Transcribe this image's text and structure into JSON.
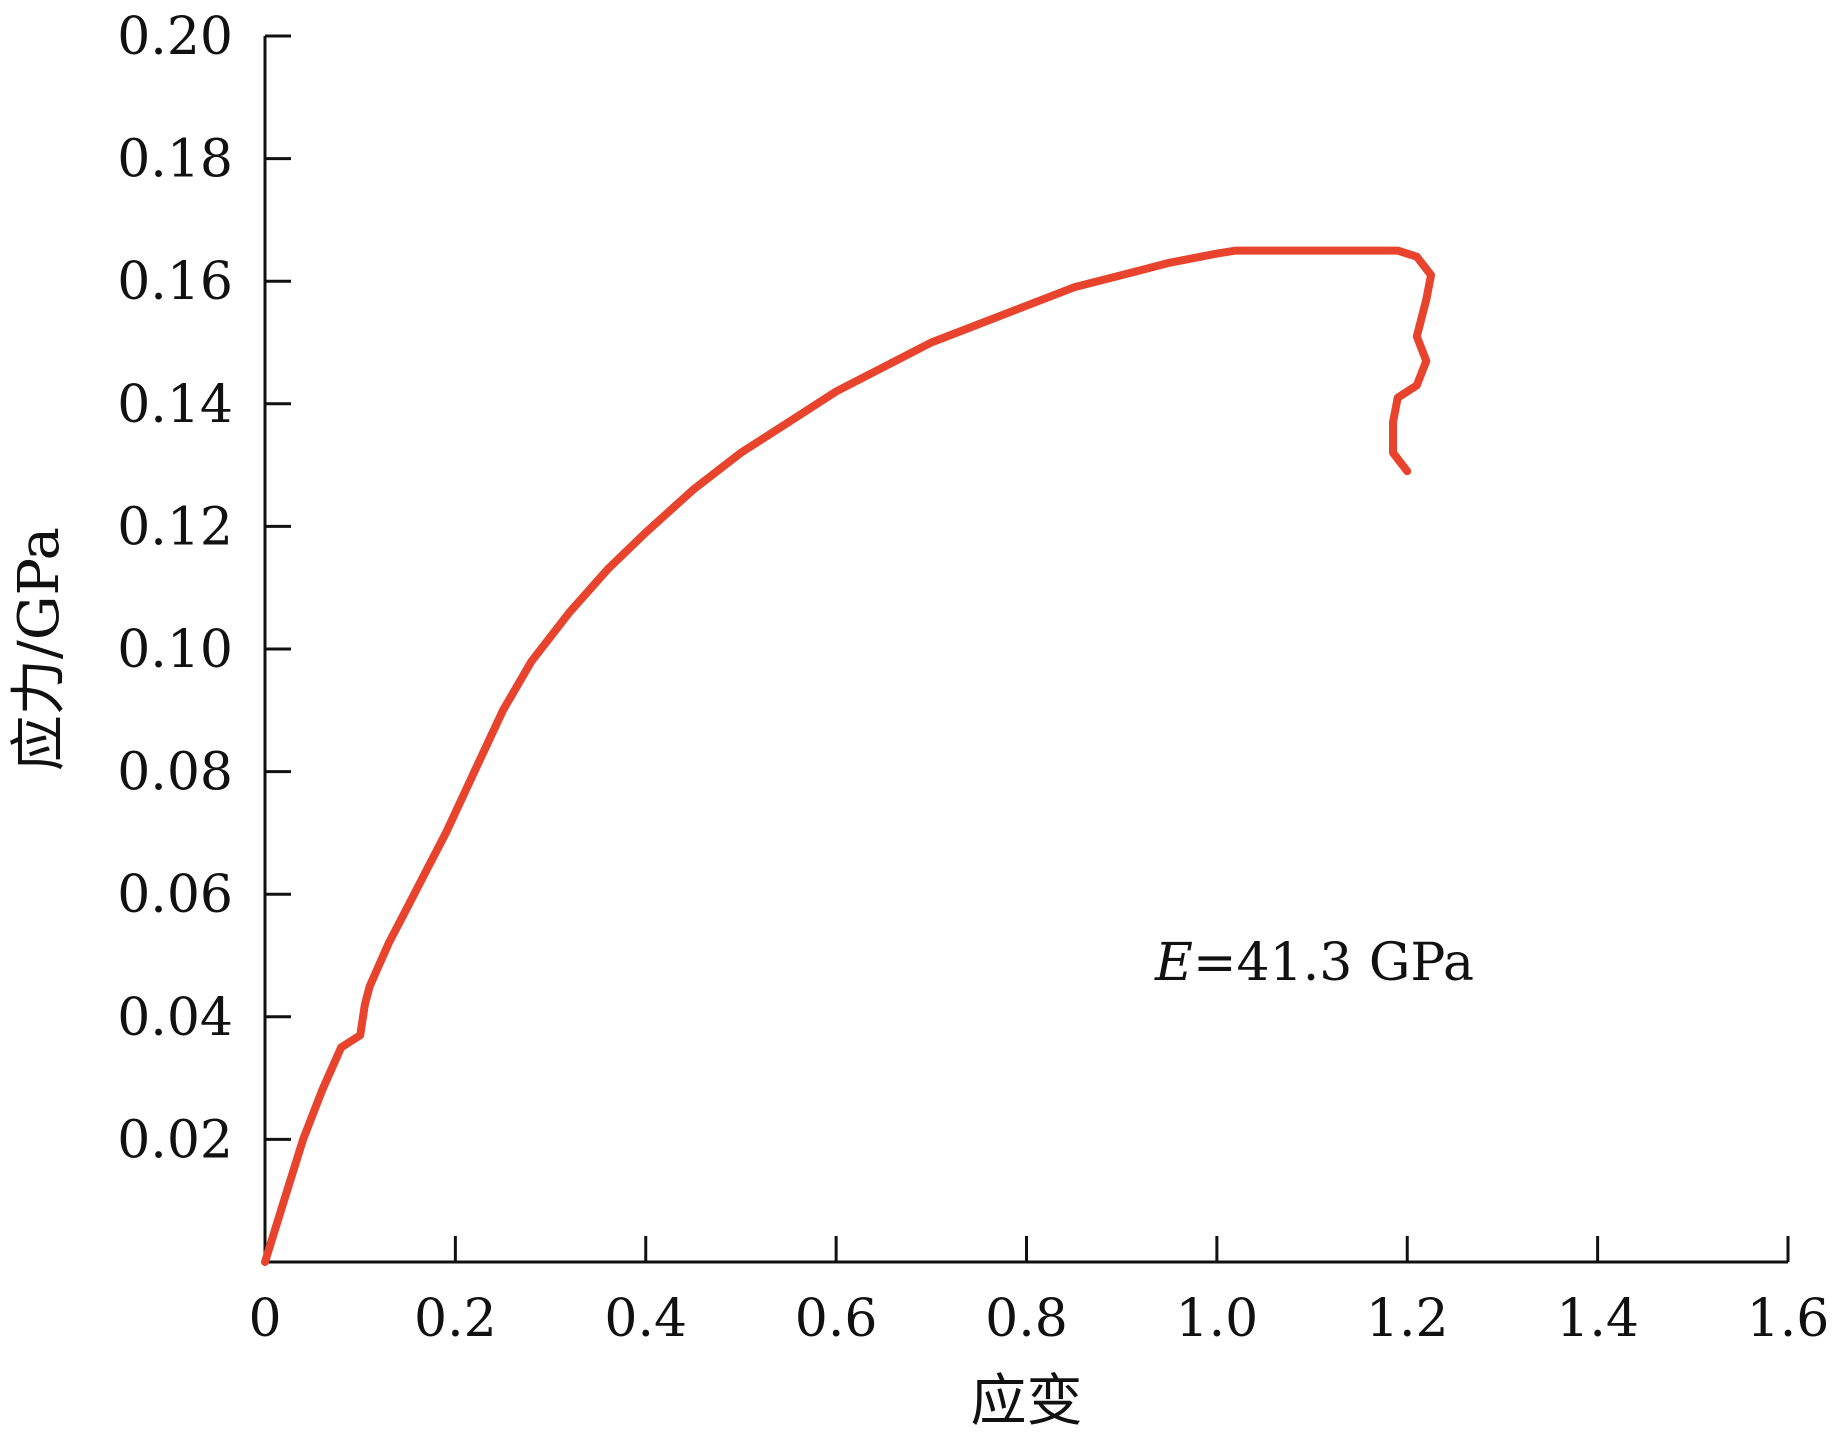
{
  "chart_data": {
    "type": "line",
    "xlabel": "应变",
    "ylabel": "应力/GPa",
    "xlim": [
      0,
      1.6
    ],
    "ylim": [
      0,
      0.2
    ],
    "x_ticks": [
      0,
      0.2,
      0.4,
      0.6,
      0.8,
      1.0,
      1.2,
      1.4,
      1.6
    ],
    "x_tick_labels": [
      "0",
      "0.2",
      "0.4",
      "0.6",
      "0.8",
      "1.0",
      "1.2",
      "1.4",
      "1.6"
    ],
    "y_ticks": [
      0.02,
      0.04,
      0.06,
      0.08,
      0.1,
      0.12,
      0.14,
      0.16,
      0.18,
      0.2
    ],
    "y_tick_labels": [
      "0.02",
      "0.04",
      "0.06",
      "0.08",
      "0.10",
      "0.12",
      "0.14",
      "0.16",
      "0.18",
      "0.20"
    ],
    "grid": false,
    "legend": "none",
    "annotation": {
      "symbol": "E",
      "text": "=41.3 GPa"
    },
    "series": [
      {
        "color": "#e8432d",
        "x": [
          0,
          0.02,
          0.04,
          0.06,
          0.08,
          0.09,
          0.1,
          0.105,
          0.11,
          0.13,
          0.15,
          0.17,
          0.19,
          0.22,
          0.25,
          0.28,
          0.32,
          0.36,
          0.4,
          0.45,
          0.5,
          0.55,
          0.6,
          0.65,
          0.7,
          0.75,
          0.8,
          0.85,
          0.9,
          0.95,
          1.0,
          1.02,
          1.1,
          1.19,
          1.21,
          1.225,
          1.22,
          1.21,
          1.22,
          1.21,
          1.19,
          1.185,
          1.185,
          1.2
        ],
        "y": [
          0,
          0.01,
          0.02,
          0.028,
          0.035,
          0.036,
          0.037,
          0.042,
          0.045,
          0.052,
          0.058,
          0.064,
          0.07,
          0.08,
          0.09,
          0.098,
          0.106,
          0.113,
          0.119,
          0.126,
          0.132,
          0.137,
          0.142,
          0.146,
          0.15,
          0.153,
          0.156,
          0.159,
          0.161,
          0.163,
          0.1645,
          0.165,
          0.165,
          0.165,
          0.164,
          0.161,
          0.157,
          0.151,
          0.147,
          0.143,
          0.141,
          0.137,
          0.132,
          0.129
        ]
      }
    ]
  }
}
